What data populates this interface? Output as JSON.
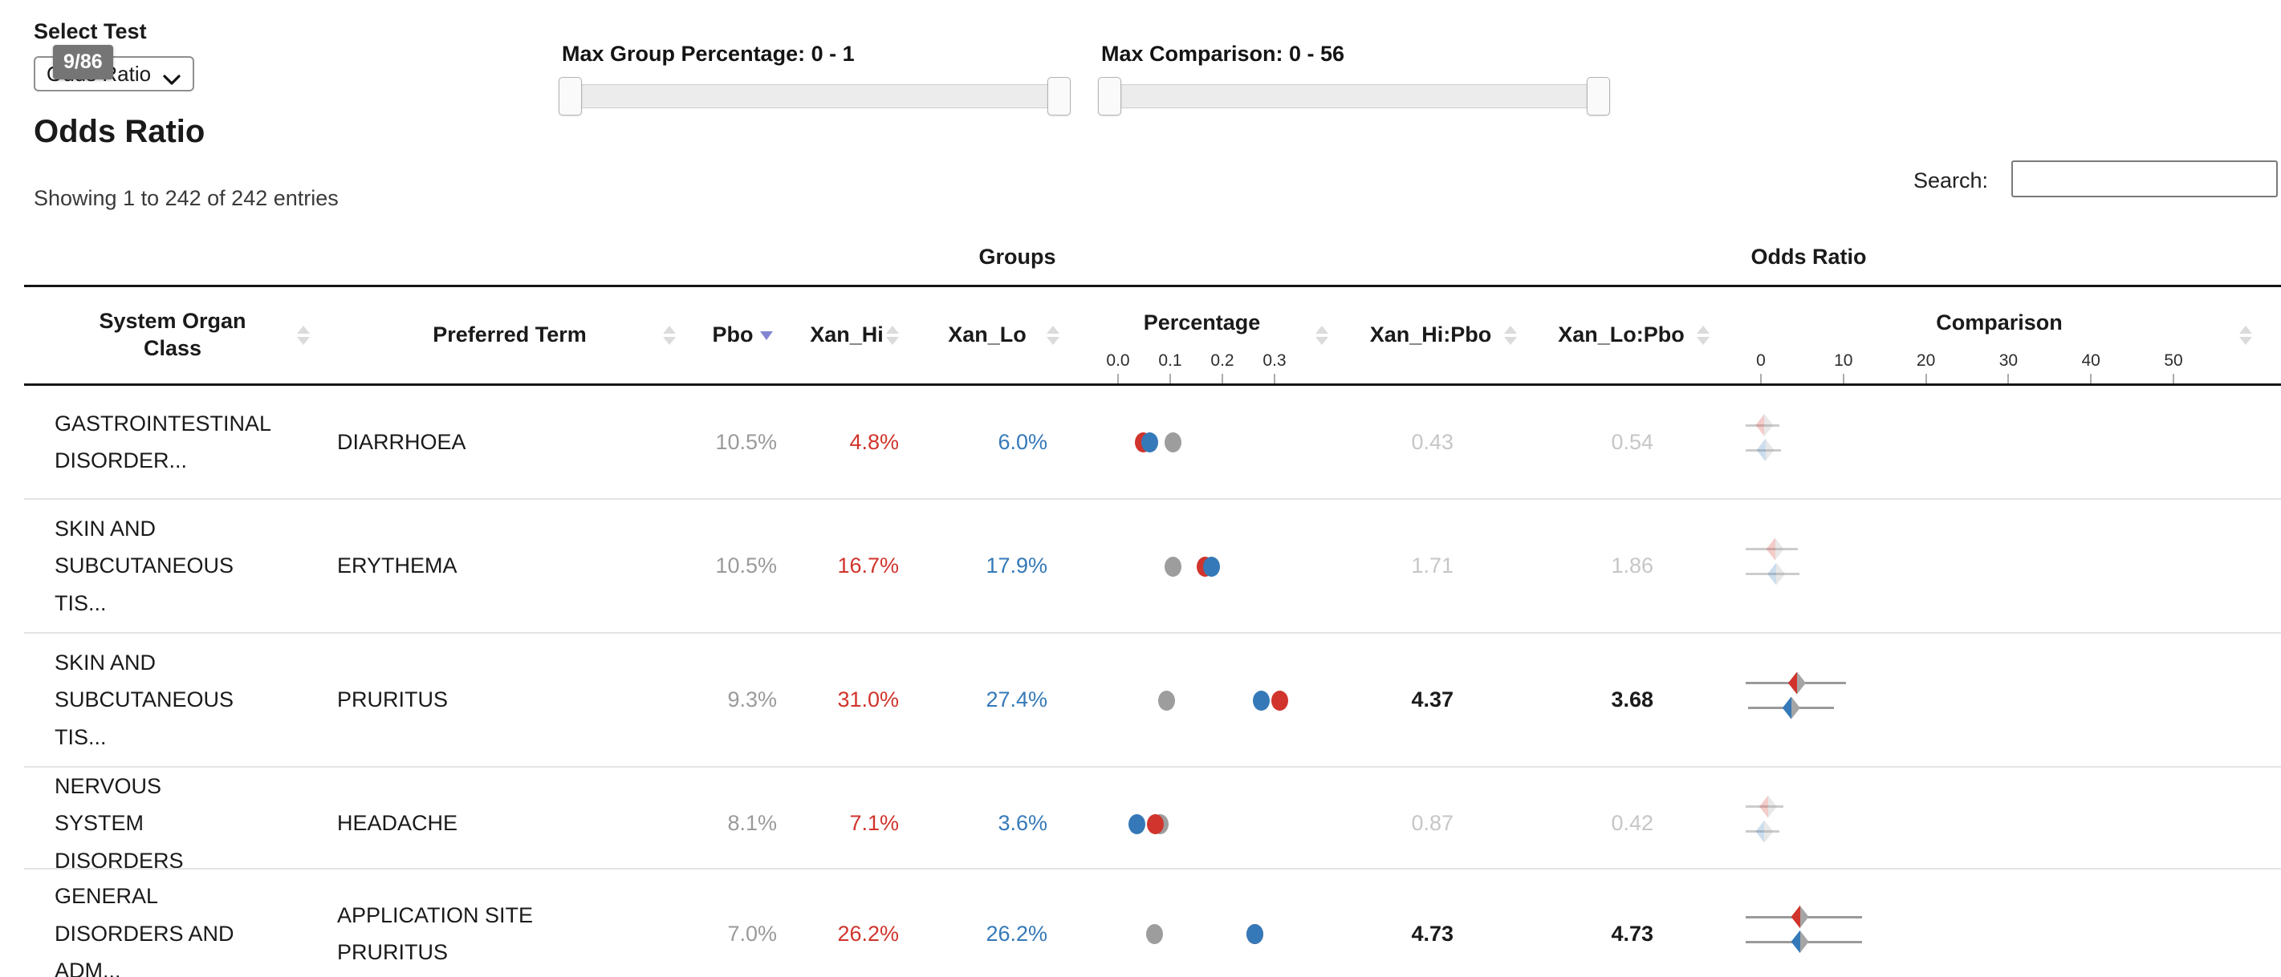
{
  "select_test": {
    "label": "Select Test",
    "value": "Odds Ratio",
    "badge": "9/86"
  },
  "sliders": [
    {
      "label": "Max Group Percentage: 0 - 1"
    },
    {
      "label": "Max Comparison: 0 - 56"
    }
  ],
  "page": {
    "title": "Odds Ratio",
    "showing": "Showing 1 to 242 of 242 entries",
    "search_label": "Search:",
    "search_value": ""
  },
  "colors": {
    "red": "#d0342c",
    "blue": "#3579b8",
    "gray": "#9d9d9d",
    "marker_gray": "#a5a5a5",
    "line_gray": "#9a9a9a",
    "muted_value": "#c6c6c6",
    "pbo_text": "#9a9a9a",
    "sort_active": "#8286d2",
    "sort_idle": "#dbdbdb"
  },
  "table": {
    "group_headers": [
      "",
      "Groups",
      "Odds Ratio"
    ],
    "columns": [
      {
        "key": "soc",
        "label": "System Organ Class",
        "sort": "both"
      },
      {
        "key": "term",
        "label": "Preferred Term",
        "sort": "both"
      },
      {
        "key": "pbo",
        "label": "Pbo",
        "sort": "desc-active"
      },
      {
        "key": "hi",
        "label": "Xan_Hi",
        "sort": "both"
      },
      {
        "key": "lo",
        "label": "Xan_Lo",
        "sort": "both"
      },
      {
        "key": "pct",
        "label": "Percentage",
        "sort": "both",
        "axis": "pct"
      },
      {
        "key": "hip",
        "label": "Xan_Hi:Pbo",
        "sort": "both"
      },
      {
        "key": "lop",
        "label": "Xan_Lo:Pbo",
        "sort": "both"
      },
      {
        "key": "cmp",
        "label": "Comparison",
        "sort": "both",
        "axis": "cmp"
      }
    ],
    "axes": {
      "pct": {
        "ticks": [
          {
            "label": "0.0",
            "v": 0
          },
          {
            "label": "0.1",
            "v": 0.1
          },
          {
            "label": "0.2",
            "v": 0.2
          },
          {
            "label": "0.3",
            "v": 0.3
          }
        ]
      },
      "cmp": {
        "ticks": [
          {
            "label": "0",
            "v": 0
          },
          {
            "label": "10",
            "v": 10
          },
          {
            "label": "20",
            "v": 20
          },
          {
            "label": "30",
            "v": 30
          },
          {
            "label": "40",
            "v": 40
          },
          {
            "label": "50",
            "v": 50
          }
        ]
      }
    },
    "rows": [
      {
        "soc": "GASTROINTESTINAL DISORDER...",
        "term": "DIARRHOEA",
        "pbo": "10.5%",
        "xan_hi": "4.8%",
        "xan_lo": "6.0%",
        "hi_pbo": "0.43",
        "lo_pbo": "0.54",
        "significant": false,
        "dots": [
          {
            "c": "red",
            "v": 0.048
          },
          {
            "c": "blue",
            "v": 0.06
          },
          {
            "c": "gray",
            "v": 0.105
          }
        ],
        "markers": [
          {
            "c": "red",
            "v": 0.43,
            "lo": -1.8,
            "hi": 2.2
          },
          {
            "c": "blue",
            "v": 0.54,
            "lo": -1.8,
            "hi": 2.4
          }
        ]
      },
      {
        "soc": "SKIN AND SUBCUTANEOUS TIS...",
        "term": "ERYTHEMA",
        "pbo": "10.5%",
        "xan_hi": "16.7%",
        "xan_lo": "17.9%",
        "hi_pbo": "1.71",
        "lo_pbo": "1.86",
        "significant": false,
        "dots": [
          {
            "c": "red",
            "v": 0.167
          },
          {
            "c": "blue",
            "v": 0.179
          },
          {
            "c": "gray",
            "v": 0.105
          }
        ],
        "markers": [
          {
            "c": "red",
            "v": 1.71,
            "lo": -1.8,
            "hi": 4.5
          },
          {
            "c": "blue",
            "v": 1.86,
            "lo": -1.8,
            "hi": 4.7
          }
        ]
      },
      {
        "soc": "SKIN AND SUBCUTANEOUS TIS...",
        "term": "PRURITUS",
        "pbo": "9.3%",
        "xan_hi": "31.0%",
        "xan_lo": "27.4%",
        "hi_pbo": "4.37",
        "lo_pbo": "3.68",
        "significant": true,
        "dots": [
          {
            "c": "gray",
            "v": 0.093
          },
          {
            "c": "blue",
            "v": 0.274
          },
          {
            "c": "red",
            "v": 0.31
          }
        ],
        "markers": [
          {
            "c": "red",
            "v": 4.37,
            "lo": -1.8,
            "hi": 10.3
          },
          {
            "c": "blue",
            "v": 3.68,
            "lo": -1.6,
            "hi": 8.9
          }
        ]
      },
      {
        "soc": "NERVOUS SYSTEM DISORDERS",
        "term": "HEADACHE",
        "pbo": "8.1%",
        "xan_hi": "7.1%",
        "xan_lo": "3.6%",
        "hi_pbo": "0.87",
        "lo_pbo": "0.42",
        "significant": false,
        "dots": [
          {
            "c": "blue",
            "v": 0.036
          },
          {
            "c": "gray",
            "v": 0.081
          },
          {
            "c": "red",
            "v": 0.071
          }
        ],
        "markers": [
          {
            "c": "red",
            "v": 0.87,
            "lo": -1.8,
            "hi": 2.7
          },
          {
            "c": "blue",
            "v": 0.42,
            "lo": -1.8,
            "hi": 2.2
          }
        ]
      },
      {
        "soc": "GENERAL DISORDERS AND ADM...",
        "term": "APPLICATION SITE PRURITUS",
        "pbo": "7.0%",
        "xan_hi": "26.2%",
        "xan_lo": "26.2%",
        "hi_pbo": "4.73",
        "lo_pbo": "4.73",
        "significant": true,
        "dots": [
          {
            "c": "red",
            "v": 0.262
          },
          {
            "c": "blue",
            "v": 0.262
          },
          {
            "c": "gray",
            "v": 0.07
          }
        ],
        "markers": [
          {
            "c": "red",
            "v": 4.73,
            "lo": -1.8,
            "hi": 12.3
          },
          {
            "c": "blue",
            "v": 4.73,
            "lo": -1.8,
            "hi": 12.3
          }
        ]
      }
    ]
  }
}
